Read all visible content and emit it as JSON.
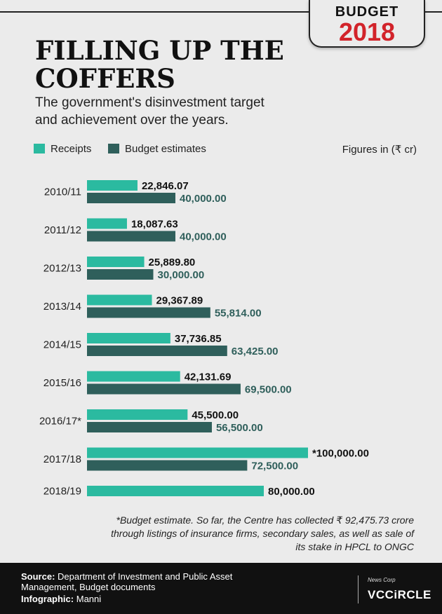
{
  "badge": {
    "line1": "BUDGET",
    "line2": "2018"
  },
  "title": "FILLING UP THE COFFERS",
  "subtitle": "The government's disinvestment target and achievement over the years.",
  "legend": [
    {
      "label": "Receipts",
      "color": "#2bbaa0"
    },
    {
      "label": "Budget estimates",
      "color": "#2f5f5b"
    }
  ],
  "units_note": "Figures in (₹ cr)",
  "chart_data": {
    "type": "bar",
    "orientation": "horizontal",
    "categories": [
      "2010/11",
      "2011/12",
      "2012/13",
      "2013/14",
      "2014/15",
      "2015/16",
      "2016/17*",
      "2017/18",
      "2018/19"
    ],
    "series": [
      {
        "name": "Receipts",
        "color": "#2bbaa0",
        "values": [
          22846.07,
          18087.63,
          25889.8,
          29367.89,
          37736.85,
          42131.69,
          45500.0,
          100000.0,
          80000.0
        ],
        "labels": [
          "22,846.07",
          "18,087.63",
          "25,889.80",
          "29,367.89",
          "37,736.85",
          "42,131.69",
          "45,500.00",
          "*100,000.00",
          "80,000.00"
        ]
      },
      {
        "name": "Budget estimates",
        "color": "#2f5f5b",
        "values": [
          40000.0,
          40000.0,
          30000.0,
          55814.0,
          63425.0,
          69500.0,
          56500.0,
          72500.0,
          null
        ],
        "labels": [
          "40,000.00",
          "40,000.00",
          "30,000.00",
          "55,814.00",
          "63,425.00",
          "69,500.00",
          "56,500.00",
          "72,500.00",
          ""
        ]
      }
    ],
    "xlim": [
      0,
      100000
    ],
    "grid": false,
    "legend_position": "top-left"
  },
  "footnote": "*Budget estimate. So far, the Centre has collected ₹ 92,475.73 crore through listings of insurance firms, secondary sales, as well as sale of its stake in HPCL to ONGC",
  "footer": {
    "source_label": "Source:",
    "source_text": "Department of Investment and Public Asset Management, Budget documents",
    "credit_label": "Infographic:",
    "credit_text": "Manni",
    "publisher": "News Corp",
    "brand": "VCCiRCLE"
  }
}
